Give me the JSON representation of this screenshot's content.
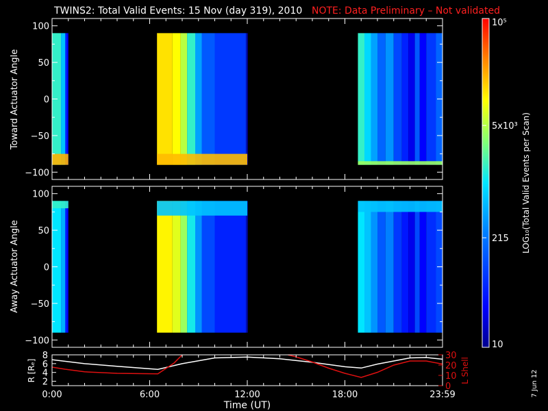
{
  "title": "TWINS2: Total Valid Events: 15 Nov (day 319), 2010",
  "note": "NOTE: Data Preliminary – Not validated",
  "date_stamp": "7 Jun 12",
  "colors": {
    "background": "#000000",
    "foreground": "#ffffff",
    "note": "#ff2020",
    "lshell": "#e01010",
    "r_line": "#ffffff"
  },
  "chart_data": [
    {
      "type": "heatmap",
      "name": "toward",
      "ylabel": "Toward Actuator Angle",
      "ylim": [
        -110,
        110
      ],
      "yticks": [
        "100",
        "50",
        "0",
        "−50",
        "−100"
      ],
      "ytick_values": [
        100,
        50,
        0,
        -50,
        -100
      ],
      "data_angle_range": [
        -90,
        90
      ],
      "colorscale": "log",
      "data_blocks": [
        {
          "t_start": 0.0,
          "t_end": 1.0,
          "cols": [
            [
              0.0,
              0.55
            ],
            [
              0.55,
              0.45
            ],
            [
              0.8,
              0.22
            ],
            [
              0.9,
              0.12
            ]
          ],
          "bottom_band": {
            "angle_to": -75,
            "value": 0.83
          }
        },
        {
          "t_start": 6.45,
          "t_end": 12.0,
          "cols": [
            [
              6.45,
              0.78
            ],
            [
              7.4,
              0.75
            ],
            [
              7.9,
              0.68
            ],
            [
              8.3,
              0.55
            ],
            [
              8.8,
              0.4
            ],
            [
              9.2,
              0.28
            ],
            [
              10.0,
              0.22
            ],
            [
              11.9,
              0.2
            ],
            [
              11.95,
              0.0
            ],
            [
              12.0,
              0.12
            ]
          ],
          "bottom_band": {
            "angle_to": -75,
            "value": 0.82
          }
        },
        {
          "t_start": 18.8,
          "t_end": 24.0,
          "cols": [
            [
              18.8,
              0.55
            ],
            [
              19.2,
              0.48
            ],
            [
              19.6,
              0.4
            ],
            [
              20.0,
              0.3
            ],
            [
              20.5,
              0.38
            ],
            [
              21.0,
              0.25
            ],
            [
              21.5,
              0.18
            ],
            [
              21.9,
              0.1
            ],
            [
              22.3,
              0.28
            ],
            [
              22.6,
              0.12
            ],
            [
              23.0,
              0.22
            ],
            [
              23.6,
              0.3
            ]
          ],
          "bottom_band": {
            "angle_to": -85,
            "value": 0.65
          }
        }
      ]
    },
    {
      "type": "heatmap",
      "name": "away",
      "ylabel": "Away Actuator Angle",
      "ylim": [
        -110,
        110
      ],
      "yticks": [
        "100",
        "50",
        "0",
        "−50",
        "−100"
      ],
      "ytick_values": [
        100,
        50,
        0,
        -50,
        -100
      ],
      "data_angle_range": [
        -90,
        90
      ],
      "colorscale": "log",
      "data_blocks": [
        {
          "t_start": 0.0,
          "t_end": 1.0,
          "cols": [
            [
              0.0,
              0.5
            ],
            [
              0.55,
              0.42
            ],
            [
              0.8,
              0.2
            ],
            [
              0.9,
              0.12
            ]
          ],
          "top_band": {
            "angle_from": 80,
            "value": 0.55
          }
        },
        {
          "t_start": 6.45,
          "t_end": 12.0,
          "cols": [
            [
              6.45,
              0.76
            ],
            [
              7.4,
              0.72
            ],
            [
              7.9,
              0.65
            ],
            [
              8.3,
              0.52
            ],
            [
              8.8,
              0.38
            ],
            [
              9.2,
              0.25
            ],
            [
              10.0,
              0.18
            ],
            [
              11.9,
              0.18
            ],
            [
              11.95,
              0.0
            ],
            [
              12.0,
              0.15
            ]
          ],
          "top_band": {
            "angle_from": 70,
            "value": 0.45
          }
        },
        {
          "t_start": 18.8,
          "t_end": 24.0,
          "cols": [
            [
              18.8,
              0.5
            ],
            [
              19.2,
              0.45
            ],
            [
              19.6,
              0.38
            ],
            [
              20.0,
              0.28
            ],
            [
              20.5,
              0.35
            ],
            [
              21.0,
              0.22
            ],
            [
              21.5,
              0.16
            ],
            [
              21.9,
              0.1
            ],
            [
              22.3,
              0.25
            ],
            [
              22.6,
              0.12
            ],
            [
              23.0,
              0.2
            ],
            [
              23.6,
              0.25
            ]
          ],
          "top_band": {
            "angle_from": 75,
            "value": 0.45
          }
        }
      ]
    },
    {
      "type": "line",
      "name": "orbit",
      "ylabel": "R [Rₑ]",
      "ylabel_right": "L Shell",
      "ylim": [
        1,
        8
      ],
      "yticks": [
        "8",
        "6",
        "4",
        "2"
      ],
      "ytick_values": [
        8,
        6,
        4,
        2
      ],
      "ylim_right": [
        0,
        30
      ],
      "yticks_right": [
        "30",
        "20",
        "10",
        "0"
      ],
      "ytick_values_right": [
        30,
        20,
        10,
        0
      ],
      "series": [
        {
          "axis": "left",
          "color": "#ffffff",
          "x": [
            0,
            2,
            4,
            6.5,
            8,
            10,
            12,
            14,
            16,
            18,
            19.0,
            20,
            22,
            23,
            24
          ],
          "y": [
            6.9,
            6.0,
            5.4,
            4.7,
            6.0,
            7.3,
            7.5,
            7.1,
            6.3,
            5.3,
            5.0,
            5.9,
            7.3,
            7.4,
            7.0
          ]
        },
        {
          "axis": "right",
          "color": "#e01010",
          "segments": [
            {
              "x": [
                0,
                0.8,
                2,
                4,
                6.5,
                7.5,
                8.0
              ],
              "y": [
                18,
                16,
                13.5,
                12,
                11.5,
                22,
                30
              ]
            },
            {
              "x": [
                14.5,
                15,
                16,
                17,
                18,
                19.0,
                20,
                21,
                22,
                23,
                24
              ],
              "y": [
                30,
                28,
                23,
                17,
                12,
                8,
                13,
                20,
                24,
                24,
                21
              ]
            }
          ]
        }
      ]
    }
  ],
  "x_axis": {
    "label": "Time (UT)",
    "range": [
      0,
      24
    ],
    "ticks": [
      "0:00",
      "6:00",
      "12:00",
      "18:00",
      "23:59"
    ],
    "tick_values": [
      0,
      6,
      12,
      18,
      24
    ]
  },
  "colorbar": {
    "label": "LOG₁₀(Total Valid Events per Scan)",
    "tick_labels": [
      "10⁵",
      "5x10³",
      "215",
      "10"
    ],
    "tick_values": [
      100000,
      5000,
      215,
      10
    ],
    "range": [
      10,
      100000
    ]
  }
}
